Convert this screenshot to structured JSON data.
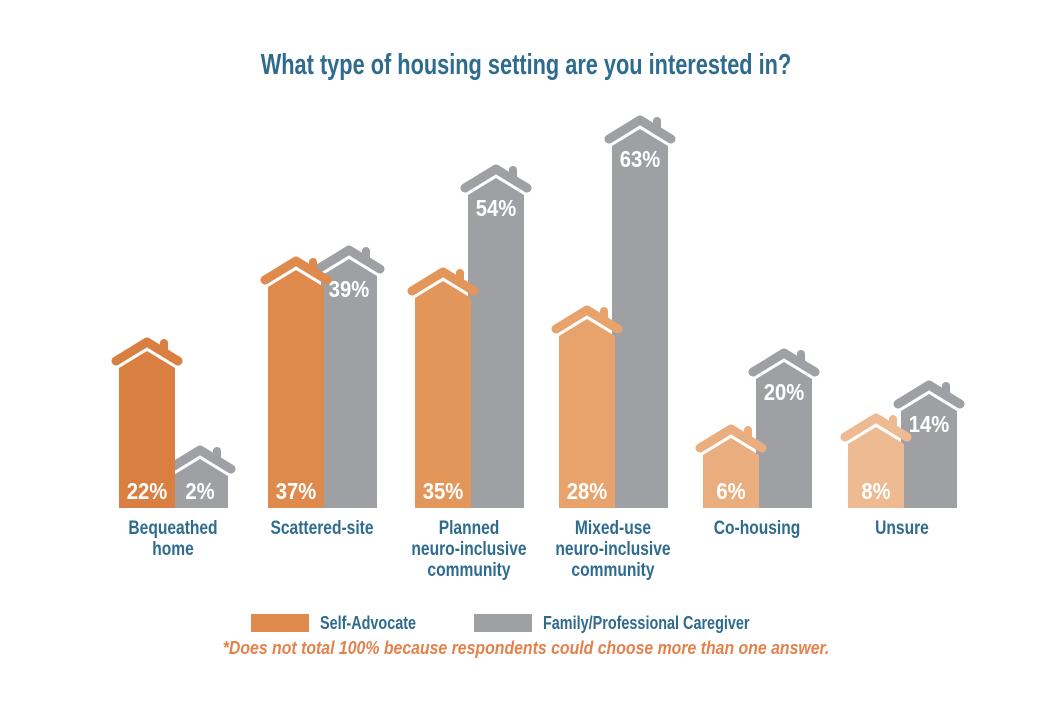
{
  "title": "What type of housing setting are you interested in?",
  "legend": {
    "items": [
      {
        "label": "Self-Advocate",
        "color": "#DE8A4D"
      },
      {
        "label": "Family/Professional Caregiver",
        "color": "#9EA0A3"
      }
    ]
  },
  "footnote": "*Does not total 100% because respondents could choose more than one answer.",
  "colors": {
    "title_text": "#2E6B8E",
    "category_label_text": "#2E6B8E",
    "value_label_text": "#FFFFFF",
    "footnote_text": "#E2824C",
    "background": "#FFFFFF"
  },
  "chart_data": {
    "type": "bar",
    "bar_style": "house-pictogram",
    "title": "What type of housing setting are you interested in?",
    "unit": "%",
    "categories": [
      "Bequeathed home",
      "Scattered-site",
      "Planned neuro-inclusive community",
      "Mixed-use neuro-inclusive community",
      "Co-housing",
      "Unsure"
    ],
    "category_lines": [
      [
        "Bequeathed",
        "home"
      ],
      [
        "Scattered-site"
      ],
      [
        "Planned",
        "neuro-inclusive",
        "community"
      ],
      [
        "Mixed-use",
        "neuro-inclusive",
        "community"
      ],
      [
        "Co-housing"
      ],
      [
        "Unsure"
      ]
    ],
    "series": [
      {
        "name": "Self-Advocate",
        "values": [
          22,
          37,
          35,
          28,
          6,
          8
        ],
        "value_labels": [
          "22%",
          "37%",
          "35%",
          "28%",
          "6%",
          "8%"
        ],
        "colors": [
          "#D97F41",
          "#DE8A4D",
          "#E39659",
          "#E7A36B",
          "#EAAE7E",
          "#EDBA92"
        ]
      },
      {
        "name": "Family/Professional Caregiver",
        "values": [
          2,
          39,
          54,
          63,
          20,
          14
        ],
        "value_labels": [
          "2%",
          "39%",
          "54%",
          "63%",
          "20%",
          "14%"
        ],
        "color": "#9EA0A3"
      }
    ],
    "ylim": [
      0,
      70
    ],
    "grid": false,
    "axes_shown": false,
    "legend_position": "bottom",
    "value_labels_shown": true
  }
}
